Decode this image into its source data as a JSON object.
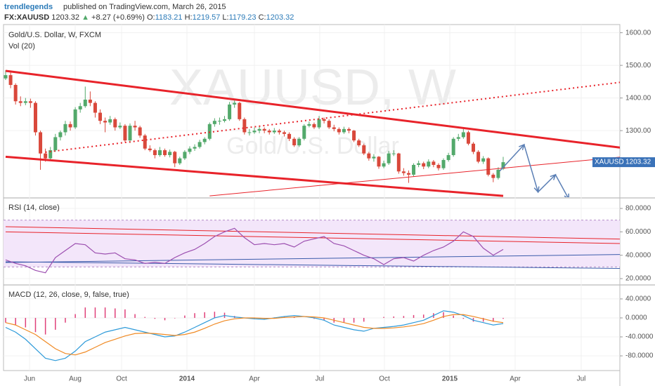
{
  "chart_data": {
    "type": "candlestick",
    "author": "trendlegends",
    "published": "published on TradingView.com, March 26, 2015",
    "symbol": "FX:XAUUSD",
    "change": "+8.27",
    "change_pct": "(+0.69%)",
    "ohlc_labels": [
      "O:",
      "H:",
      "L:",
      "C:"
    ],
    "title": "Gold/U.S. Dollar, W, FXCM",
    "volume_label": "Vol (20)",
    "watermark": "XAUUSD, W",
    "watermark_sub": "Gold/U.S. Dollar",
    "tag": "XAUUSD",
    "up_color": "#53a96b",
    "down_color": "#d9483b",
    "ylim": [
      1096,
      1625
    ],
    "yticks": [
      {
        "value": 1600,
        "label": "1600.00"
      },
      {
        "value": 1500,
        "label": "1500.00"
      },
      {
        "value": 1400,
        "label": "1400.00"
      },
      {
        "value": 1300,
        "label": "1300.00"
      }
    ],
    "time_labels": [
      "Jun",
      "Aug",
      "Oct",
      "2014",
      "Apr",
      "Jul",
      "Oct",
      "2015",
      "Apr",
      "Jul"
    ],
    "candles": [
      [
        1460,
        1485,
        1455,
        1470
      ],
      [
        1470,
        1478,
        1430,
        1440
      ],
      [
        1440,
        1445,
        1380,
        1390
      ],
      [
        1390,
        1405,
        1375,
        1385
      ],
      [
        1385,
        1400,
        1378,
        1390
      ],
      [
        1390,
        1398,
        1370,
        1385
      ],
      [
        1385,
        1390,
        1285,
        1295
      ],
      [
        1295,
        1300,
        1180,
        1230
      ],
      [
        1230,
        1245,
        1205,
        1215
      ],
      [
        1215,
        1250,
        1208,
        1240
      ],
      [
        1240,
        1290,
        1235,
        1280
      ],
      [
        1280,
        1300,
        1270,
        1295
      ],
      [
        1295,
        1330,
        1285,
        1320
      ],
      [
        1320,
        1328,
        1300,
        1310
      ],
      [
        1310,
        1372,
        1305,
        1365
      ],
      [
        1365,
        1385,
        1355,
        1375
      ],
      [
        1375,
        1435,
        1370,
        1395
      ],
      [
        1395,
        1420,
        1375,
        1385
      ],
      [
        1385,
        1390,
        1340,
        1355
      ],
      [
        1355,
        1365,
        1320,
        1330
      ],
      [
        1330,
        1340,
        1295,
        1325
      ],
      [
        1325,
        1345,
        1318,
        1335
      ],
      [
        1335,
        1340,
        1300,
        1310
      ],
      [
        1310,
        1325,
        1305,
        1315
      ],
      [
        1315,
        1320,
        1265,
        1270
      ],
      [
        1270,
        1322,
        1262,
        1315
      ],
      [
        1315,
        1330,
        1300,
        1310
      ],
      [
        1310,
        1315,
        1278,
        1285
      ],
      [
        1285,
        1290,
        1240,
        1245
      ],
      [
        1245,
        1255,
        1235,
        1240
      ],
      [
        1240,
        1245,
        1215,
        1225
      ],
      [
        1225,
        1250,
        1220,
        1240
      ],
      [
        1240,
        1245,
        1220,
        1225
      ],
      [
        1225,
        1242,
        1218,
        1235
      ],
      [
        1235,
        1238,
        1188,
        1200
      ],
      [
        1200,
        1220,
        1195,
        1215
      ],
      [
        1215,
        1240,
        1210,
        1235
      ],
      [
        1235,
        1252,
        1228,
        1245
      ],
      [
        1245,
        1258,
        1238,
        1250
      ],
      [
        1250,
        1272,
        1245,
        1265
      ],
      [
        1265,
        1280,
        1258,
        1275
      ],
      [
        1275,
        1325,
        1270,
        1320
      ],
      [
        1320,
        1338,
        1312,
        1330
      ],
      [
        1330,
        1340,
        1318,
        1330
      ],
      [
        1330,
        1345,
        1325,
        1335
      ],
      [
        1335,
        1388,
        1330,
        1380
      ],
      [
        1380,
        1392,
        1370,
        1385
      ],
      [
        1385,
        1388,
        1330,
        1335
      ],
      [
        1335,
        1340,
        1288,
        1295
      ],
      [
        1295,
        1305,
        1285,
        1295
      ],
      [
        1295,
        1310,
        1290,
        1300
      ],
      [
        1300,
        1312,
        1292,
        1305
      ],
      [
        1305,
        1310,
        1292,
        1300
      ],
      [
        1300,
        1305,
        1288,
        1295
      ],
      [
        1295,
        1308,
        1290,
        1300
      ],
      [
        1300,
        1305,
        1288,
        1295
      ],
      [
        1295,
        1300,
        1282,
        1290
      ],
      [
        1290,
        1295,
        1268,
        1275
      ],
      [
        1275,
        1280,
        1250,
        1255
      ],
      [
        1255,
        1280,
        1250,
        1275
      ],
      [
        1275,
        1320,
        1270,
        1315
      ],
      [
        1315,
        1328,
        1310,
        1320
      ],
      [
        1320,
        1325,
        1305,
        1310
      ],
      [
        1310,
        1345,
        1305,
        1335
      ],
      [
        1335,
        1340,
        1322,
        1330
      ],
      [
        1330,
        1335,
        1305,
        1310
      ],
      [
        1310,
        1318,
        1298,
        1305
      ],
      [
        1305,
        1310,
        1288,
        1295
      ],
      [
        1295,
        1312,
        1290,
        1305
      ],
      [
        1305,
        1310,
        1292,
        1300
      ],
      [
        1300,
        1302,
        1265,
        1270
      ],
      [
        1270,
        1275,
        1250,
        1255
      ],
      [
        1255,
        1260,
        1225,
        1230
      ],
      [
        1230,
        1235,
        1208,
        1215
      ],
      [
        1215,
        1228,
        1205,
        1220
      ],
      [
        1220,
        1222,
        1183,
        1190
      ],
      [
        1190,
        1208,
        1185,
        1200
      ],
      [
        1200,
        1238,
        1195,
        1230
      ],
      [
        1230,
        1240,
        1222,
        1230
      ],
      [
        1230,
        1232,
        1168,
        1175
      ],
      [
        1175,
        1185,
        1162,
        1170
      ],
      [
        1170,
        1178,
        1140,
        1165
      ],
      [
        1165,
        1200,
        1160,
        1195
      ],
      [
        1195,
        1208,
        1188,
        1200
      ],
      [
        1200,
        1205,
        1182,
        1190
      ],
      [
        1190,
        1212,
        1185,
        1205
      ],
      [
        1205,
        1210,
        1188,
        1195
      ],
      [
        1195,
        1200,
        1178,
        1185
      ],
      [
        1185,
        1215,
        1180,
        1210
      ],
      [
        1210,
        1232,
        1205,
        1225
      ],
      [
        1225,
        1280,
        1220,
        1275
      ],
      [
        1275,
        1290,
        1268,
        1280
      ],
      [
        1280,
        1305,
        1275,
        1295
      ],
      [
        1295,
        1300,
        1255,
        1260
      ],
      [
        1260,
        1265,
        1228,
        1235
      ],
      [
        1235,
        1240,
        1200,
        1205
      ],
      [
        1205,
        1222,
        1198,
        1215
      ],
      [
        1215,
        1218,
        1160,
        1165
      ],
      [
        1165,
        1170,
        1142,
        1155
      ],
      [
        1155,
        1188,
        1150,
        1180
      ],
      [
        1183.21,
        1219.57,
        1179.23,
        1203.32
      ]
    ],
    "drawings": [
      {
        "points": [
          [
            0,
            1483
          ],
          [
            123.5,
            1248
          ]
        ],
        "color": "#e8232a",
        "width": 3,
        "dash": false
      },
      {
        "points": [
          [
            0,
            1220
          ],
          [
            100,
            1100
          ]
        ],
        "color": "#e8232a",
        "width": 3,
        "dash": false
      },
      {
        "points": [
          [
            8,
            1234
          ],
          [
            123.5,
            1448
          ]
        ],
        "color": "#e8232a",
        "width": 2,
        "dash": true
      },
      {
        "points": [
          [
            41,
            1100
          ],
          [
            123.5,
            1219
          ]
        ],
        "color": "#e8232a",
        "width": 1,
        "dash": false
      },
      {
        "points": [
          [
            99.3,
            1176
          ],
          [
            104.2,
            1257
          ],
          [
            107,
            1112
          ],
          [
            110.5,
            1165
          ],
          [
            113.2,
            1090
          ]
        ],
        "color": "#5b7fb5",
        "width": 1.5,
        "dash": false
      }
    ],
    "rsi": {
      "title": "RSI (14, close)",
      "color": "#9c4fb0",
      "band": [
        30,
        70
      ],
      "ylim": [
        15.2,
        88.4
      ],
      "yticks": [
        {
          "value": 80,
          "label": "80.0000"
        },
        {
          "value": 60,
          "label": "60.0000"
        },
        {
          "value": 40,
          "label": "40.0000"
        },
        {
          "value": 20,
          "label": "20.0000"
        }
      ],
      "values": [
        36,
        33,
        31,
        27,
        25,
        38,
        44,
        50,
        49,
        42,
        41,
        42,
        37,
        36,
        33,
        34,
        33,
        38,
        42,
        45,
        50,
        56,
        60,
        63,
        55,
        49,
        50,
        49,
        50,
        47,
        52,
        54,
        56,
        50,
        48,
        44,
        40,
        37,
        32,
        37,
        38,
        35,
        40,
        44,
        47,
        52,
        60,
        56,
        46,
        40,
        45
      ],
      "lines": [
        {
          "points": [
            [
              0,
              64.4
            ],
            [
              123.5,
              53.8
            ]
          ],
          "color": "#e8232a"
        },
        {
          "points": [
            [
              0,
              60
            ],
            [
              123.5,
              50
            ]
          ],
          "color": "#e8232a"
        },
        {
          "points": [
            [
              0,
              33.8
            ],
            [
              123.5,
              40.6
            ]
          ],
          "color": "#3b5bab"
        },
        {
          "points": [
            [
              0,
              34.4
            ],
            [
              123.5,
              28.7
            ]
          ],
          "color": "#3b5bab"
        }
      ]
    },
    "macd": {
      "title": "MACD (12, 26, close, 9, false, true)",
      "ylim": [
        -111,
        68
      ],
      "yticks": [
        {
          "value": 40,
          "label": "40.0000"
        },
        {
          "value": 0,
          "label": "0.0000"
        },
        {
          "value": -40,
          "label": "-40.0000"
        },
        {
          "value": -80,
          "label": "-80.0000"
        }
      ],
      "series": [
        {
          "name": "MACD",
          "color": "#2d9ad9",
          "values": [
            -20,
            -30,
            -45,
            -65,
            -85,
            -90,
            -85,
            -70,
            -50,
            -40,
            -30,
            -25,
            -20,
            -25,
            -30,
            -35,
            -40,
            -38,
            -30,
            -20,
            -10,
            0,
            5,
            2,
            0,
            -2,
            -3,
            0,
            3,
            5,
            3,
            0,
            -5,
            -15,
            -20,
            -25,
            -28,
            -22,
            -20,
            -18,
            -15,
            -10,
            -5,
            5,
            15,
            12,
            5,
            -5,
            -10,
            -15,
            -12
          ]
        },
        {
          "name": "Signal",
          "color": "#f08a24",
          "values": [
            -10,
            -15,
            -25,
            -35,
            -50,
            -65,
            -75,
            -78,
            -72,
            -62,
            -52,
            -45,
            -38,
            -33,
            -32,
            -33,
            -35,
            -37,
            -35,
            -30,
            -22,
            -13,
            -6,
            -2,
            0,
            0,
            -1,
            -1,
            1,
            2,
            3,
            2,
            0,
            -5,
            -10,
            -15,
            -20,
            -22,
            -22,
            -21,
            -19,
            -16,
            -12,
            -5,
            3,
            7,
            7,
            3,
            -2,
            -7,
            -10
          ]
        }
      ],
      "histogram": {
        "color": "#e0407a",
        "values": [
          -10,
          -15,
          -20,
          -30,
          -35,
          -25,
          -10,
          8,
          22,
          22,
          22,
          20,
          18,
          8,
          2,
          -2,
          -5,
          -1,
          5,
          10,
          12,
          13,
          11,
          4,
          0,
          -2,
          -2,
          1,
          2,
          3,
          0,
          -2,
          -5,
          -10,
          -10,
          -10,
          -8,
          0,
          2,
          3,
          4,
          6,
          7,
          10,
          12,
          5,
          -2,
          -8,
          -8,
          -8,
          -2
        ]
      }
    }
  }
}
